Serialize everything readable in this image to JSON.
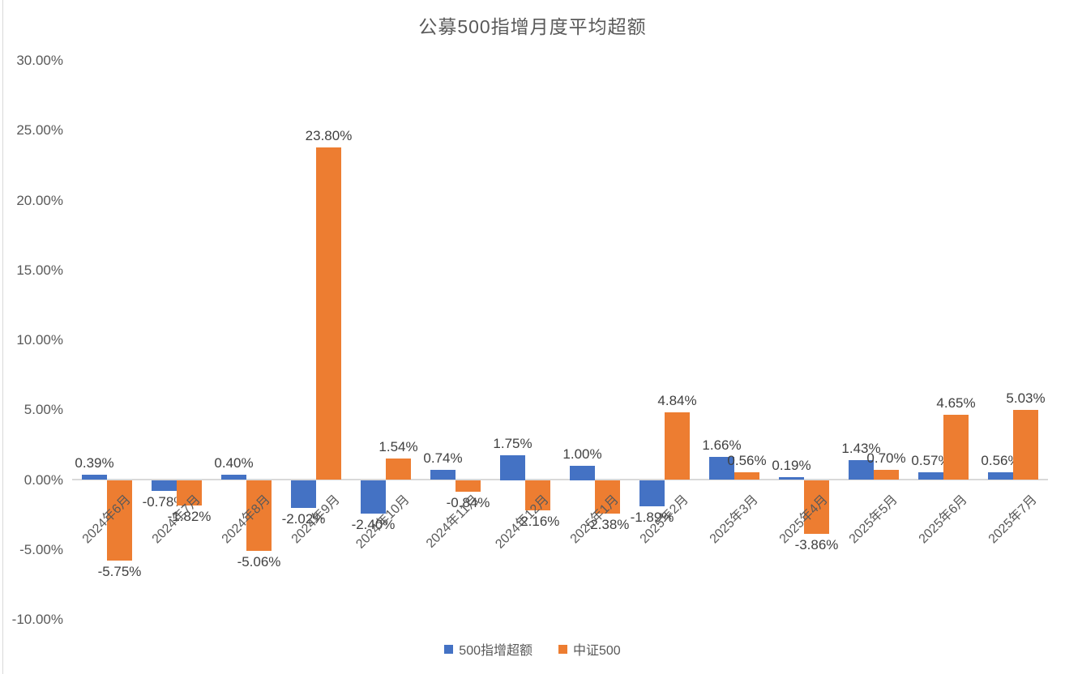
{
  "chart_data": {
    "type": "bar",
    "title": "公募500指增月度平均超额",
    "categories": [
      "2024年6月",
      "2024年7月",
      "2024年8月",
      "2024年9月",
      "2024年10月",
      "2024年11月",
      "2024年12月",
      "2025年1月",
      "2025年2月",
      "2025年3月",
      "2025年4月",
      "2025年5月",
      "2025年6月",
      "2025年7月"
    ],
    "series": [
      {
        "name": "500指增超额",
        "color": "#4472C4",
        "values": [
          0.39,
          -0.78,
          0.4,
          -2.02,
          -2.4,
          0.74,
          1.75,
          1.0,
          -1.89,
          1.66,
          0.19,
          1.43,
          0.57,
          0.56
        ]
      },
      {
        "name": "中证500",
        "color": "#ED7D31",
        "values": [
          -5.75,
          -1.82,
          -5.06,
          23.8,
          1.54,
          -0.84,
          -2.16,
          -2.38,
          4.84,
          0.56,
          -3.86,
          0.7,
          4.65,
          5.03
        ]
      }
    ],
    "ylim": [
      -10,
      30
    ],
    "yticks": [
      30,
      25,
      20,
      15,
      10,
      5,
      0,
      -5,
      -10
    ],
    "ytick_format": "0.00%",
    "data_label_format": "0.00%",
    "grid": false,
    "data_labels": true,
    "legend_position": "bottom",
    "xlabel": "",
    "ylabel": ""
  },
  "colors": {
    "axis_line": "#d9d9d9",
    "axis_text": "#595959",
    "data_label_text": "#404040",
    "background": "#ffffff"
  }
}
